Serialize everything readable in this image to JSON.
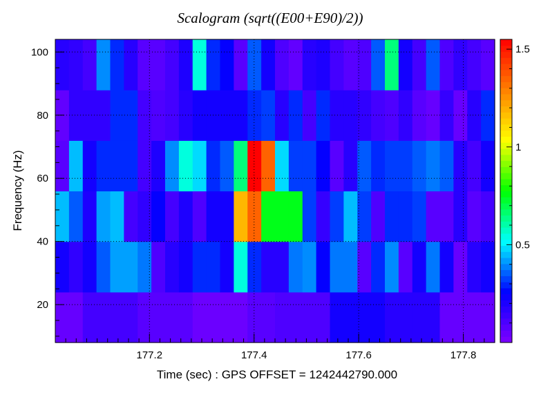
{
  "chart_data": {
    "type": "heatmap",
    "title": "Scalogram (sqrt((E00+E90)/2))",
    "xlabel": "Time (sec) : GPS OFFSET = 1242442790.000",
    "ylabel": "Frequency (Hz)",
    "xlim": [
      177.02,
      177.86
    ],
    "ylim": [
      8,
      104
    ],
    "x_ticks": [
      "177.2",
      "177.4",
      "177.6",
      "177.8"
    ],
    "x_tick_values": [
      177.2,
      177.4,
      177.6,
      177.8
    ],
    "y_ticks": [
      "20",
      "40",
      "60",
      "80",
      "100"
    ],
    "y_tick_values": [
      20,
      40,
      60,
      80,
      100
    ],
    "colorbar": {
      "range": [
        0.0,
        1.55
      ],
      "ticks": [
        "0.5",
        "1",
        "1.5"
      ],
      "tick_values": [
        0.5,
        1.0,
        1.5
      ],
      "palette": [
        "#7f00ff",
        "#0000ff",
        "#00ffff",
        "#00ff00",
        "#ffff00",
        "#ff8000",
        "#ff0000"
      ]
    },
    "grid": true,
    "freq_bands": [
      {
        "f_low": 8,
        "f_high": 24,
        "t_start": 177.02,
        "dt": 0.0525,
        "values": [
          0.05,
          0.12,
          0.12,
          0.08,
          0.08,
          0.04,
          0.04,
          0.08,
          0.1,
          0.1,
          0.22,
          0.22,
          0.18,
          0.18,
          0.05,
          0.05
        ]
      },
      {
        "f_low": 24,
        "f_high": 40,
        "t_start": 177.02,
        "dt": 0.02625,
        "values": [
          0.22,
          0.16,
          0.22,
          0.35,
          0.42,
          0.42,
          0.38,
          0.1,
          0.18,
          0.22,
          0.3,
          0.3,
          0.22,
          0.55,
          0.3,
          0.18,
          0.18,
          0.38,
          0.4,
          0.25,
          0.38,
          0.38,
          0.08,
          0.3,
          0.4,
          0.08,
          0.22,
          0.38,
          0.22,
          0.05,
          0.18,
          0.22
        ]
      },
      {
        "f_low": 40,
        "f_high": 56,
        "t_start": 177.02,
        "dt": 0.02625,
        "values": [
          0.45,
          0.35,
          0.2,
          0.42,
          0.45,
          0.12,
          0.16,
          0.25,
          0.12,
          0.2,
          0.1,
          0.22,
          0.22,
          1.18,
          1.35,
          0.75,
          0.75,
          0.75,
          0.32,
          0.15,
          0.32,
          0.45,
          0.32,
          0.1,
          0.3,
          0.3,
          0.32,
          0.08,
          0.08,
          0.18,
          0.08,
          0.12
        ]
      },
      {
        "f_low": 56,
        "f_high": 72,
        "t_start": 177.02,
        "dt": 0.02625,
        "values": [
          0.08,
          0.45,
          0.22,
          0.3,
          0.3,
          0.3,
          0.12,
          0.2,
          0.4,
          0.55,
          0.48,
          0.3,
          0.35,
          0.65,
          1.55,
          1.35,
          0.48,
          0.32,
          0.32,
          0.25,
          0.08,
          0.18,
          0.35,
          0.3,
          0.32,
          0.32,
          0.35,
          0.38,
          0.35,
          0.18,
          0.12,
          0.22
        ]
      },
      {
        "f_low": 72,
        "f_high": 88,
        "t_start": 177.02,
        "dt": 0.02625,
        "values": [
          0.06,
          0.16,
          0.16,
          0.16,
          0.3,
          0.3,
          0.12,
          0.1,
          0.12,
          0.18,
          0.22,
          0.22,
          0.22,
          0.22,
          0.3,
          0.32,
          0.18,
          0.3,
          0.12,
          0.3,
          0.18,
          0.18,
          0.16,
          0.12,
          0.1,
          0.16,
          0.08,
          0.05,
          0.15,
          0.05,
          0.18,
          0.3
        ]
      },
      {
        "f_low": 88,
        "f_high": 104,
        "t_start": 177.02,
        "dt": 0.02625,
        "values": [
          0.18,
          0.16,
          0.12,
          0.4,
          0.3,
          0.18,
          0.08,
          0.08,
          0.12,
          0.2,
          0.55,
          0.3,
          0.25,
          0.08,
          0.35,
          0.22,
          0.1,
          0.06,
          0.18,
          0.2,
          0.12,
          0.08,
          0.1,
          0.35,
          0.65,
          0.22,
          0.12,
          0.35,
          0.1,
          0.16,
          0.12,
          0.08
        ]
      }
    ]
  }
}
